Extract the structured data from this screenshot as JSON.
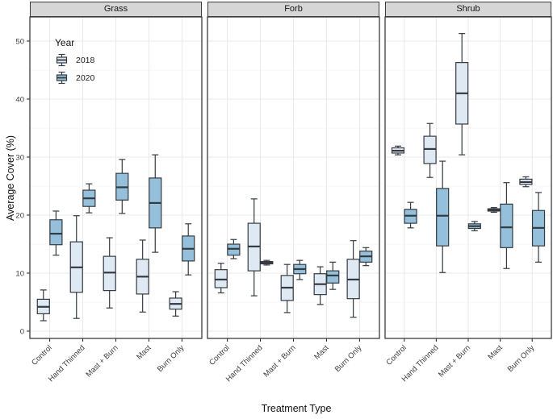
{
  "figure": {
    "xlabel": "Treatment Type",
    "ylabel": "Average Cover (%)",
    "legend": {
      "title": "Year",
      "items": [
        {
          "label": "2018",
          "color": "#dfe9f4"
        },
        {
          "label": "2020",
          "color": "#94c0db"
        }
      ]
    }
  },
  "chart_data": {
    "type": "boxplot",
    "title": "",
    "xlabel": "Treatment Type",
    "ylabel": "Average Cover (%)",
    "facets": [
      "Grass",
      "Forb",
      "Shrub"
    ],
    "categories": [
      "Control",
      "Hand Thinned",
      "Mast + Burn",
      "Mast",
      "Burn Only"
    ],
    "series_names": [
      "2018",
      "2020"
    ],
    "colors": {
      "2018": "#dfe9f4",
      "2020": "#94c0db",
      "stroke": "#343a40",
      "grid_major": "#e9e9e9",
      "grid_minor": "#f4f4f4",
      "panel_border": "#3c3c3c",
      "strip_bg": "#d6d6d6",
      "tick_label": "#404040"
    },
    "ylim": [
      0,
      54
    ],
    "yticks": [
      0,
      10,
      20,
      30,
      40,
      50
    ],
    "yticks_minor": [
      5,
      15,
      25,
      35,
      45
    ],
    "grid": true,
    "legend_position": "inside-top-left-first-panel",
    "boxes": {
      "Grass": {
        "2018": [
          {
            "lo": 1.8,
            "q1": 3.0,
            "med": 4.2,
            "q3": 5.5,
            "hi": 7.1
          },
          {
            "lo": 2.2,
            "q1": 6.7,
            "med": 11.0,
            "q3": 15.4,
            "hi": 19.9
          },
          {
            "lo": 4.0,
            "q1": 7.0,
            "med": 10.1,
            "q3": 12.9,
            "hi": 16.1
          },
          {
            "lo": 3.3,
            "q1": 6.4,
            "med": 9.4,
            "q3": 12.4,
            "hi": 15.7
          },
          {
            "lo": 2.6,
            "q1": 3.8,
            "med": 4.7,
            "q3": 5.7,
            "hi": 6.8
          }
        ],
        "2020": [
          {
            "lo": 13.1,
            "q1": 14.9,
            "med": 16.8,
            "q3": 19.2,
            "hi": 20.7
          },
          {
            "lo": 20.4,
            "q1": 21.5,
            "med": 22.9,
            "q3": 24.3,
            "hi": 25.4
          },
          {
            "lo": 20.3,
            "q1": 22.6,
            "med": 24.8,
            "q3": 27.2,
            "hi": 29.6
          },
          {
            "lo": 13.6,
            "q1": 17.8,
            "med": 22.1,
            "q3": 26.4,
            "hi": 30.4
          },
          {
            "lo": 9.7,
            "q1": 12.1,
            "med": 14.2,
            "q3": 16.4,
            "hi": 18.5
          }
        ]
      },
      "Forb": {
        "2018": [
          {
            "lo": 6.6,
            "q1": 7.5,
            "med": 8.9,
            "q3": 10.6,
            "hi": 11.7
          },
          {
            "lo": 6.1,
            "q1": 10.4,
            "med": 14.6,
            "q3": 18.6,
            "hi": 22.8
          },
          {
            "lo": 3.2,
            "q1": 5.3,
            "med": 7.5,
            "q3": 9.6,
            "hi": 11.5
          },
          {
            "lo": 4.6,
            "q1": 6.3,
            "med": 8.1,
            "q3": 9.9,
            "hi": 11.1
          },
          {
            "lo": 2.4,
            "q1": 5.6,
            "med": 8.9,
            "q3": 12.4,
            "hi": 15.6
          }
        ],
        "2020": [
          {
            "lo": 12.5,
            "q1": 13.1,
            "med": 14.2,
            "q3": 15.0,
            "hi": 15.8
          },
          {
            "lo": 11.4,
            "q1": 11.6,
            "med": 11.8,
            "q3": 12.0,
            "hi": 12.2
          },
          {
            "lo": 8.9,
            "q1": 9.9,
            "med": 10.7,
            "q3": 11.5,
            "hi": 12.2
          },
          {
            "lo": 7.2,
            "q1": 8.3,
            "med": 9.6,
            "q3": 10.4,
            "hi": 11.9
          },
          {
            "lo": 11.3,
            "q1": 11.9,
            "med": 12.9,
            "q3": 13.8,
            "hi": 14.4
          }
        ]
      },
      "Shrub": {
        "2018": [
          {
            "lo": 30.4,
            "q1": 30.7,
            "med": 31.1,
            "q3": 31.6,
            "hi": 31.9
          },
          {
            "lo": 26.5,
            "q1": 28.9,
            "med": 31.4,
            "q3": 33.6,
            "hi": 35.8
          },
          {
            "lo": 30.4,
            "q1": 35.7,
            "med": 41.0,
            "q3": 46.3,
            "hi": 51.3
          },
          {
            "lo": 20.5,
            "q1": 20.7,
            "med": 20.9,
            "q3": 21.1,
            "hi": 21.3
          },
          {
            "lo": 24.9,
            "q1": 25.3,
            "med": 25.7,
            "q3": 26.2,
            "hi": 26.6
          }
        ],
        "2020": [
          {
            "lo": 17.8,
            "q1": 18.6,
            "med": 19.9,
            "q3": 21.0,
            "hi": 22.2
          },
          {
            "lo": 10.1,
            "q1": 14.7,
            "med": 19.9,
            "q3": 24.6,
            "hi": 29.3
          },
          {
            "lo": 17.3,
            "q1": 17.7,
            "med": 18.1,
            "q3": 18.5,
            "hi": 18.9
          },
          {
            "lo": 10.8,
            "q1": 14.4,
            "med": 17.9,
            "q3": 21.9,
            "hi": 25.6
          },
          {
            "lo": 11.9,
            "q1": 14.7,
            "med": 17.8,
            "q3": 20.8,
            "hi": 23.9
          }
        ]
      }
    }
  }
}
